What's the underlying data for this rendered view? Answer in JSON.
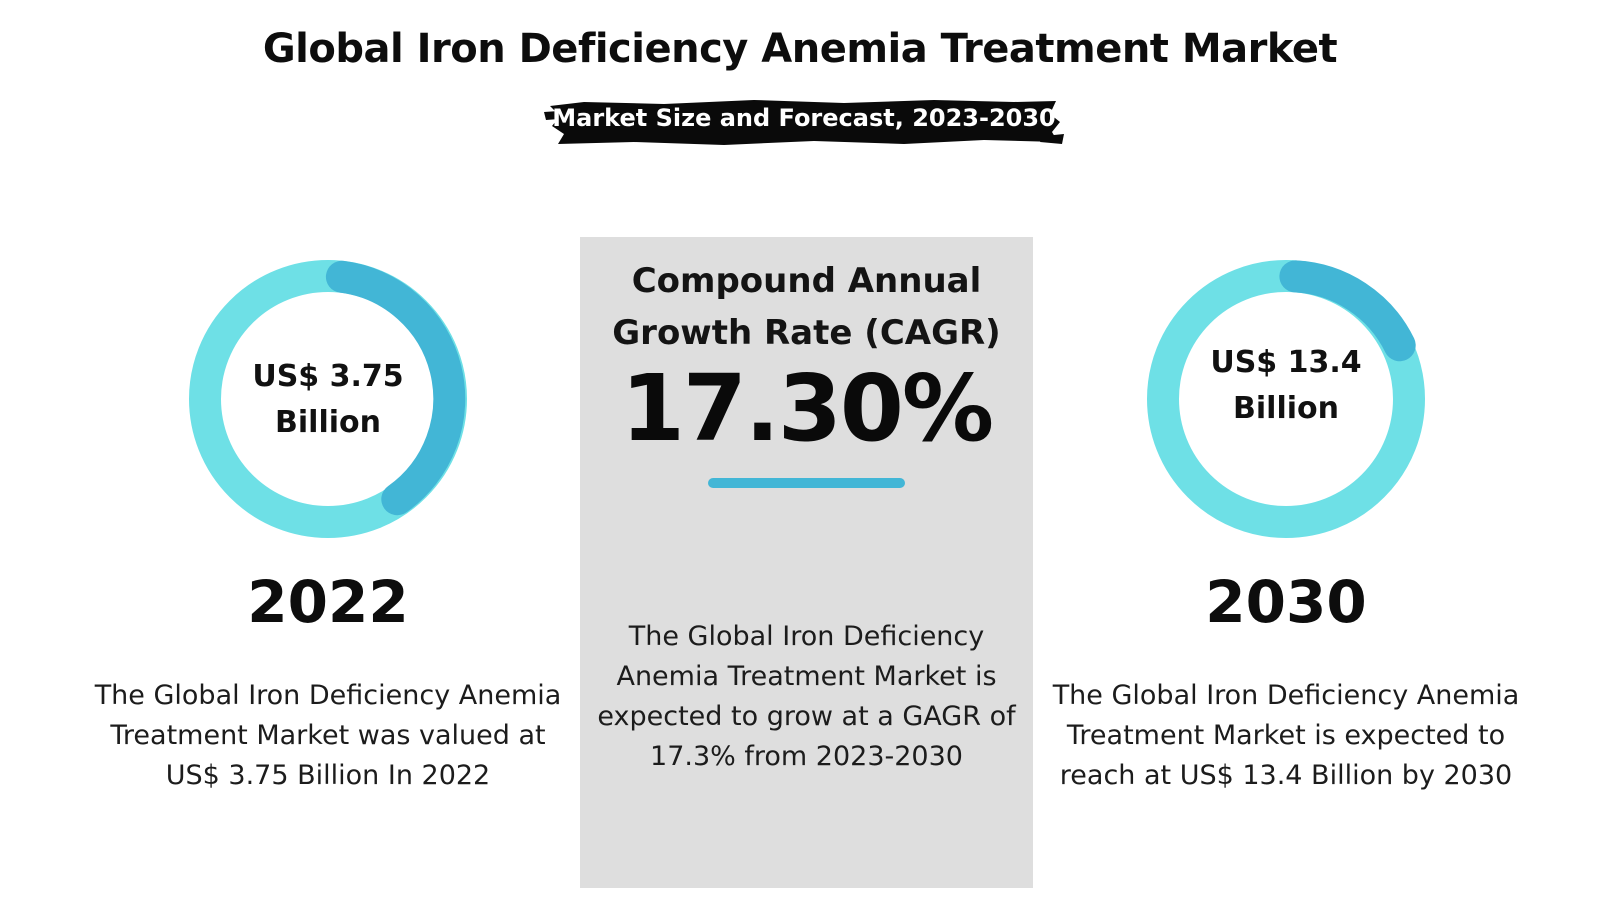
{
  "header": {
    "title": "Global Iron Deficiency Anemia Treatment Market",
    "subtitle": "Market Size and Forecast, 2023-2030"
  },
  "left": {
    "value_line1": "US$ 3.75",
    "value_line2": "Billion",
    "year": "2022",
    "description": "The Global Iron Deficiency Anemia Treatment Market was valued at US$ 3.75 Billion In 2022"
  },
  "center": {
    "label_line1": "Compound Annual",
    "label_line2": "Growth Rate (CAGR)",
    "value": "17.30%",
    "description": "The Global Iron Deficiency Anemia Treatment Market is expected to grow at a GAGR of 17.3% from 2023-2030"
  },
  "right": {
    "value_line1": "US$ 13.4",
    "value_line2": "Billion",
    "year": "2030",
    "description": "The Global Iron Deficiency Anemia Treatment Market is expected to reach at US$ 13.4 Billion by 2030"
  },
  "colors": {
    "ring_light": "#6ee0e6",
    "ring_dark": "#42b6d6",
    "panel": "#dedede",
    "brush": "#0a0a0a"
  }
}
